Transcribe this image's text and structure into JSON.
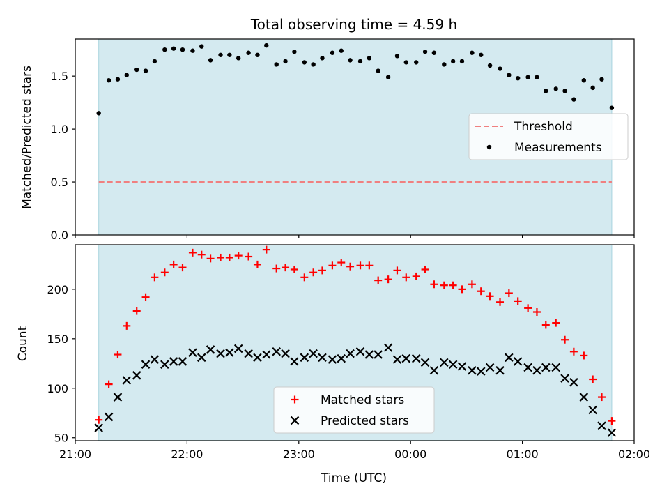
{
  "chart_data": {
    "type": "scatter",
    "title": "Total observing time = 4.59 h",
    "xlabel": "Time (UTC)",
    "x_ticks": [
      "21:00",
      "22:00",
      "23:00",
      "00:00",
      "01:00",
      "02:00"
    ],
    "x_range_hours": [
      21.0,
      26.0
    ],
    "observing_window_hours": [
      21.21,
      25.8
    ],
    "colors": {
      "observing_window": "#d4eaf0",
      "window_edge": "#a8d4de",
      "threshold": "#f08080",
      "measurements": "#000000",
      "matched": "#ff0000",
      "predicted": "#000000"
    },
    "panels": [
      {
        "id": "ratio",
        "ylabel": "Matched/Predicted stars",
        "ylim": [
          0.0,
          1.85
        ],
        "y_ticks": [
          "0.0",
          "0.5",
          "1.0",
          "1.5"
        ],
        "threshold": 0.5,
        "legend": {
          "threshold": "Threshold",
          "measurements": "Measurements"
        },
        "legend_position": "center-right",
        "measurements": {
          "x": [
            21.21,
            21.3,
            21.38,
            21.46,
            21.55,
            21.63,
            21.71,
            21.8,
            21.88,
            21.96,
            22.05,
            22.13,
            22.21,
            22.3,
            22.38,
            22.46,
            22.55,
            22.63,
            22.71,
            22.8,
            22.88,
            22.96,
            23.05,
            23.13,
            23.21,
            23.3,
            23.38,
            23.46,
            23.55,
            23.63,
            23.71,
            23.8,
            23.88,
            23.96,
            24.05,
            24.13,
            24.21,
            24.3,
            24.38,
            24.46,
            24.55,
            24.63,
            24.71,
            24.8,
            24.88,
            24.96,
            25.05,
            25.13,
            25.21,
            25.3,
            25.38,
            25.46,
            25.55,
            25.63,
            25.71,
            25.8
          ],
          "y": [
            1.15,
            1.46,
            1.47,
            1.51,
            1.56,
            1.55,
            1.64,
            1.75,
            1.76,
            1.75,
            1.74,
            1.78,
            1.65,
            1.7,
            1.7,
            1.67,
            1.72,
            1.7,
            1.79,
            1.61,
            1.64,
            1.73,
            1.63,
            1.61,
            1.67,
            1.72,
            1.74,
            1.65,
            1.64,
            1.67,
            1.55,
            1.49,
            1.69,
            1.63,
            1.63,
            1.73,
            1.72,
            1.61,
            1.64,
            1.64,
            1.72,
            1.7,
            1.6,
            1.57,
            1.51,
            1.48,
            1.49,
            1.49,
            1.36,
            1.38,
            1.36,
            1.28,
            1.46,
            1.39,
            1.47,
            1.2
          ]
        }
      },
      {
        "id": "count",
        "ylabel": "Count",
        "ylim": [
          47,
          245
        ],
        "y_ticks": [
          "50",
          "100",
          "150",
          "200"
        ],
        "legend": {
          "matched": "Matched stars",
          "predicted": "Predicted stars"
        },
        "legend_position": "bottom-center",
        "x": [
          21.21,
          21.3,
          21.38,
          21.46,
          21.55,
          21.63,
          21.71,
          21.8,
          21.88,
          21.96,
          22.05,
          22.13,
          22.21,
          22.3,
          22.38,
          22.46,
          22.55,
          22.63,
          22.71,
          22.8,
          22.88,
          22.96,
          23.05,
          23.13,
          23.21,
          23.3,
          23.38,
          23.46,
          23.55,
          23.63,
          23.71,
          23.8,
          23.88,
          23.96,
          24.05,
          24.13,
          24.21,
          24.3,
          24.38,
          24.46,
          24.55,
          24.63,
          24.71,
          24.8,
          24.88,
          24.96,
          25.05,
          25.13,
          25.21,
          25.3,
          25.38,
          25.46,
          25.55,
          25.63,
          25.71,
          25.8
        ],
        "series": [
          {
            "name": "Matched stars",
            "marker": "plus",
            "values": [
              68,
              104,
              134,
              163,
              178,
              192,
              212,
              217,
              225,
              222,
              237,
              235,
              231,
              232,
              232,
              234,
              233,
              225,
              240,
              221,
              222,
              220,
              212,
              217,
              219,
              224,
              227,
              223,
              224,
              224,
              209,
              210,
              219,
              212,
              213,
              220,
              205,
              204,
              204,
              200,
              205,
              198,
              193,
              187,
              196,
              188,
              181,
              177,
              164,
              166,
              149,
              137,
              133,
              109,
              91,
              67
            ]
          },
          {
            "name": "Predicted stars",
            "marker": "x",
            "values": [
              60,
              71,
              91,
              108,
              113,
              124,
              129,
              124,
              127,
              127,
              136,
              131,
              139,
              135,
              136,
              140,
              135,
              131,
              134,
              137,
              135,
              127,
              131,
              135,
              131,
              129,
              130,
              135,
              137,
              134,
              134,
              141,
              129,
              130,
              130,
              126,
              118,
              126,
              124,
              122,
              118,
              117,
              121,
              118,
              131,
              127,
              121,
              118,
              121,
              121,
              110,
              106,
              91,
              78,
              62,
              55
            ]
          }
        ]
      }
    ]
  }
}
